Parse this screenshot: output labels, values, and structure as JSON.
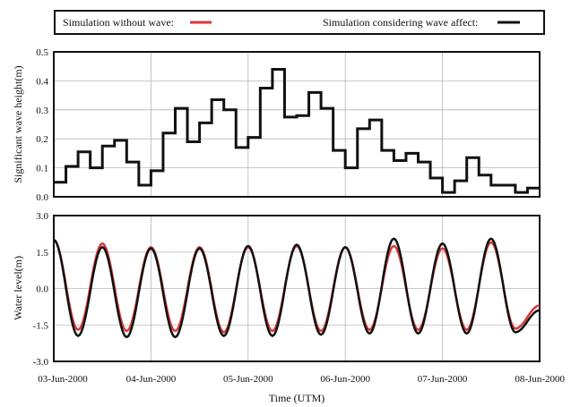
{
  "legend": {
    "without_wave_label": "Simulation without wave:",
    "with_wave_label": "Simulation considering wave affect:"
  },
  "colors": {
    "without_wave": "#d93a3a",
    "with_wave": "#111111",
    "grid": "#b8b8b8"
  },
  "chart_data": [
    {
      "type": "line",
      "step": true,
      "xlabel": "",
      "ylabel": "Significant wave height(m)",
      "xlim": [
        0,
        5
      ],
      "ylim": [
        0,
        0.5
      ],
      "yticks": [
        "0.0",
        "0.1",
        "0.2",
        "0.3",
        "0.4",
        "0.5"
      ],
      "grid": true,
      "series": [
        {
          "name": "Simulation considering wave affect",
          "x": [
            0,
            0.125,
            0.25,
            0.375,
            0.5,
            0.625,
            0.75,
            0.875,
            1.0,
            1.125,
            1.25,
            1.375,
            1.5,
            1.625,
            1.75,
            1.875,
            2.0,
            2.125,
            2.25,
            2.375,
            2.5,
            2.625,
            2.75,
            2.875,
            3.0,
            3.125,
            3.25,
            3.375,
            3.5,
            3.625,
            3.75,
            3.875,
            4.0,
            4.125,
            4.25,
            4.375,
            4.5,
            4.625,
            4.75,
            4.875,
            5.0
          ],
          "y": [
            0.05,
            0.105,
            0.155,
            0.1,
            0.175,
            0.195,
            0.12,
            0.04,
            0.09,
            0.22,
            0.305,
            0.19,
            0.255,
            0.335,
            0.3,
            0.17,
            0.205,
            0.375,
            0.44,
            0.275,
            0.28,
            0.36,
            0.305,
            0.16,
            0.1,
            0.235,
            0.265,
            0.16,
            0.125,
            0.15,
            0.12,
            0.065,
            0.015,
            0.055,
            0.135,
            0.075,
            0.04,
            0.04,
            0.015,
            0.03,
            0.03
          ]
        }
      ]
    },
    {
      "type": "line",
      "xlabel": "Time (UTM)",
      "ylabel": "Water level(m)",
      "xlim": [
        0,
        5
      ],
      "ylim": [
        -3,
        3
      ],
      "yticks": [
        "-3.0",
        "-1.5",
        "0.0",
        "1.5",
        "3.0"
      ],
      "categories": [
        "03-Jun-2000",
        "04-Jun-2000",
        "05-Jun-2000",
        "06-Jun-2000",
        "07-Jun-2000",
        "08-Jun-2000"
      ],
      "grid": true,
      "period_days": 0.5,
      "series": [
        {
          "name": "Simulation without wave",
          "x": [
            0.0,
            0.25,
            0.5,
            0.75,
            1.0,
            1.25,
            1.5,
            1.75,
            2.0,
            2.25,
            2.5,
            2.75,
            3.0,
            3.25,
            3.5,
            3.75,
            4.0,
            4.25,
            4.5,
            4.75,
            5.0
          ],
          "y": [
            2.0,
            -1.7,
            1.85,
            -1.75,
            1.7,
            -1.75,
            1.7,
            -1.8,
            1.7,
            -1.75,
            1.75,
            -1.75,
            1.7,
            -1.7,
            1.75,
            -1.7,
            1.65,
            -1.7,
            1.9,
            -1.65,
            -0.7
          ]
        },
        {
          "name": "Simulation considering wave affect",
          "x": [
            0.0,
            0.25,
            0.5,
            0.75,
            1.0,
            1.25,
            1.5,
            1.75,
            2.0,
            2.25,
            2.5,
            2.75,
            3.0,
            3.25,
            3.5,
            3.75,
            4.0,
            4.25,
            4.5,
            4.75,
            5.0
          ],
          "y": [
            2.0,
            -1.95,
            1.7,
            -2.0,
            1.65,
            -2.0,
            1.65,
            -1.95,
            1.75,
            -1.95,
            1.8,
            -1.9,
            1.7,
            -1.85,
            2.05,
            -1.85,
            1.85,
            -1.85,
            2.05,
            -1.8,
            -0.9
          ]
        }
      ]
    }
  ]
}
